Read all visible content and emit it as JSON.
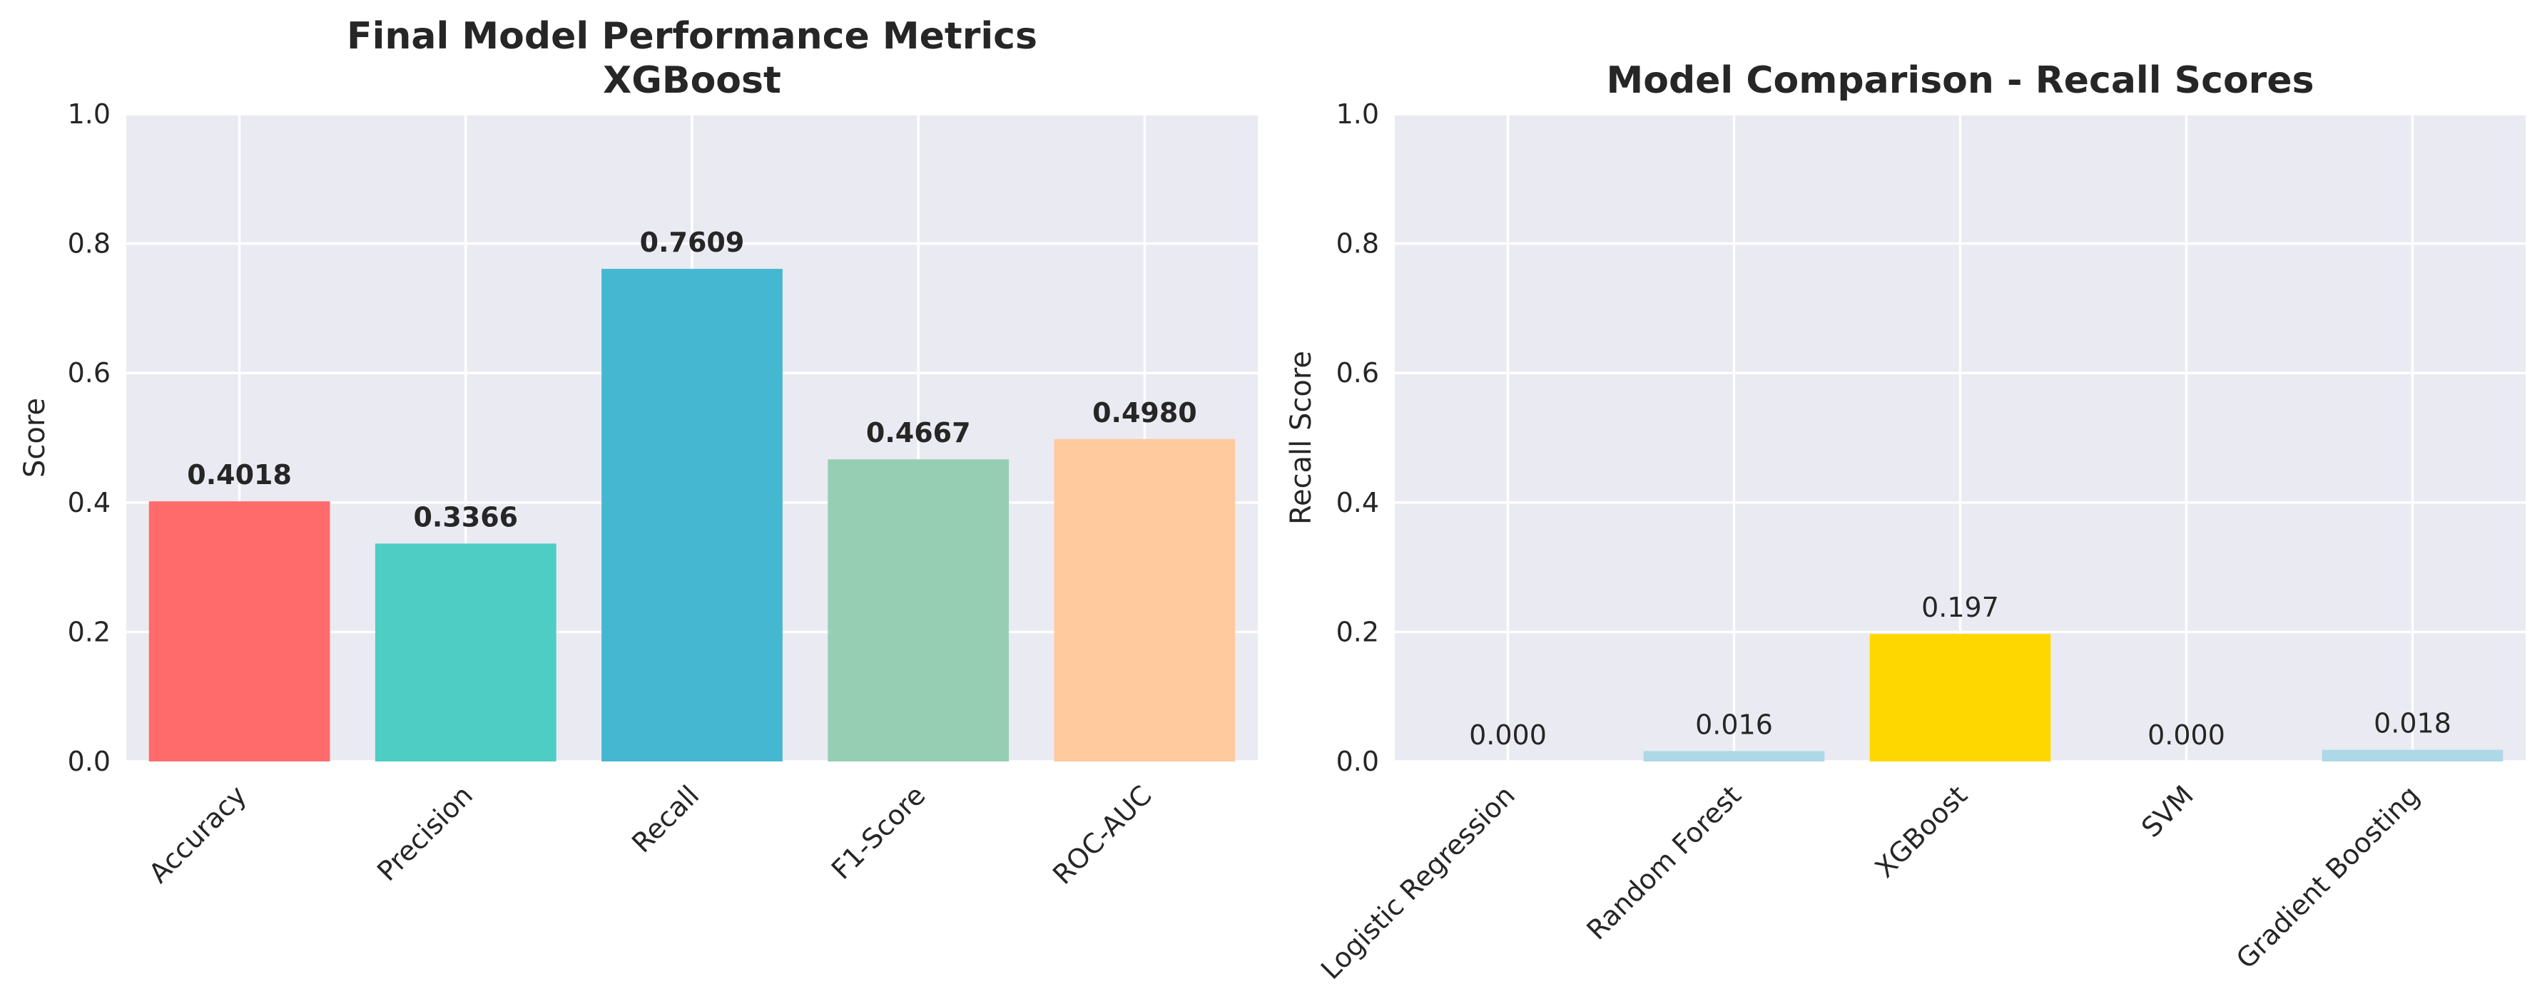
{
  "chart_data": [
    {
      "type": "bar",
      "title": "Final Model Performance Metrics\nXGBoost",
      "xlabel": "",
      "ylabel": "Score",
      "ylim": [
        0,
        1.0
      ],
      "yticks": [
        "0.0",
        "0.2",
        "0.4",
        "0.6",
        "0.8",
        "1.0"
      ],
      "grid": true,
      "categories": [
        "Accuracy",
        "Precision",
        "Recall",
        "F1-Score",
        "ROC-AUC"
      ],
      "values": [
        0.4018,
        0.3366,
        0.7609,
        0.4667,
        0.498
      ],
      "value_labels": [
        "0.4018",
        "0.3366",
        "0.7609",
        "0.4667",
        "0.4980"
      ],
      "colors": [
        "#ff6b6b",
        "#4ecdc4",
        "#45b7d1",
        "#96ceb4",
        "#feca9e"
      ]
    },
    {
      "type": "bar",
      "title": "Model Comparison - Recall Scores",
      "xlabel": "",
      "ylabel": "Recall Score",
      "ylim": [
        0,
        1.0
      ],
      "yticks": [
        "0.0",
        "0.2",
        "0.4",
        "0.6",
        "0.8",
        "1.0"
      ],
      "grid": true,
      "categories": [
        "Logistic Regression",
        "Random Forest",
        "XGBoost",
        "SVM",
        "Gradient Boosting"
      ],
      "values": [
        0.0,
        0.016,
        0.197,
        0.0,
        0.018
      ],
      "value_labels": [
        "0.000",
        "0.016",
        "0.197",
        "0.000",
        "0.018"
      ],
      "colors": [
        "#add8e6",
        "#add8e6",
        "#ffd700",
        "#add8e6",
        "#add8e6"
      ]
    }
  ]
}
